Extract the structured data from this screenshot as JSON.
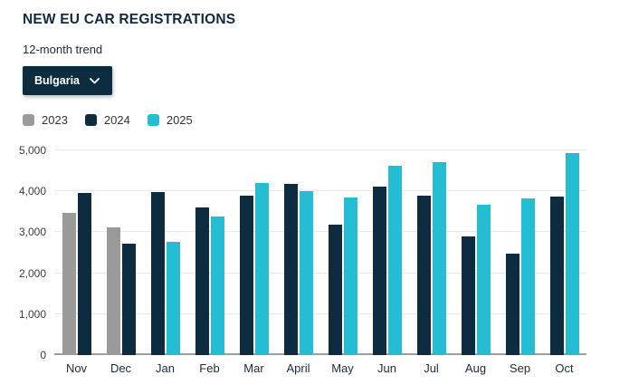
{
  "header": {
    "title": "NEW EU CAR REGISTRATIONS",
    "subtitle": "12-month trend"
  },
  "country_selector": {
    "selected": "Bulgaria"
  },
  "legend": [
    {
      "year": "2023",
      "color": "#9a9a9a"
    },
    {
      "year": "2024",
      "color": "#0d2c3f"
    },
    {
      "year": "2025",
      "color": "#25bdd3"
    }
  ],
  "chart_data": {
    "type": "bar",
    "title": "NEW EU CAR REGISTRATIONS",
    "subtitle": "12-month trend",
    "categories": [
      "Nov",
      "Dec",
      "Jan",
      "Feb",
      "Mar",
      "April",
      "May",
      "Jun",
      "Jul",
      "Aug",
      "Sep",
      "Oct"
    ],
    "series": [
      {
        "name": "2023",
        "color": "#9a9a9a",
        "values": [
          3470,
          3120,
          null,
          null,
          null,
          null,
          null,
          null,
          null,
          null,
          null,
          null
        ]
      },
      {
        "name": "2024",
        "color": "#0d2c3f",
        "values": [
          3950,
          2720,
          3990,
          3600,
          3900,
          4190,
          3190,
          4120,
          3900,
          2900,
          2470,
          3870
        ]
      },
      {
        "name": "2025",
        "color": "#25bdd3",
        "values": [
          null,
          null,
          2760,
          3380,
          4210,
          4000,
          3840,
          4620,
          4720,
          3670,
          3820,
          4940
        ]
      }
    ],
    "xlabel": "",
    "ylabel": "",
    "ylim": [
      0,
      5000
    ],
    "y_ticks": [
      0,
      1000,
      2000,
      3000,
      4000,
      5000
    ],
    "y_tick_labels": [
      "0",
      "1,000",
      "2,000",
      "3,000",
      "4,000",
      "5,000"
    ],
    "grid": "horizontal",
    "legend_position": "top-left"
  }
}
